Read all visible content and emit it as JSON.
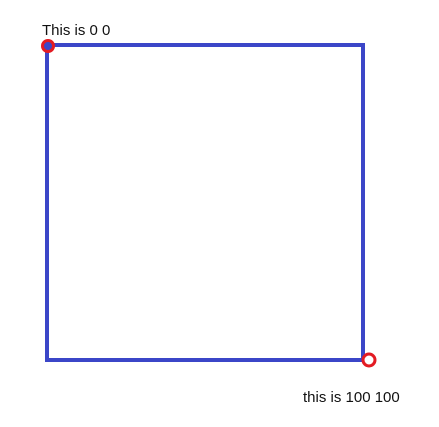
{
  "labels": {
    "origin": "This is 0 0",
    "end": "this is 100 100"
  },
  "colors": {
    "square_stroke": "#3b46c8",
    "marker_stroke": "#e31b23",
    "text": "#111111"
  },
  "markers": {
    "origin_fill": "#3b46c8",
    "end_fill": "#ffffff"
  }
}
